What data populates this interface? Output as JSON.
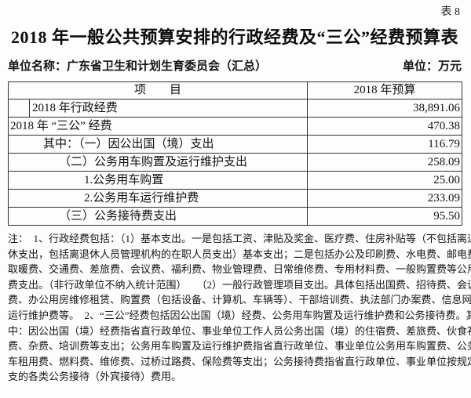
{
  "doc": {
    "table_tag": "表 8",
    "title": "2018 年一般公共预算安排的行政经费及“三公”经费预算表",
    "unit_name": "单位名称：广东省卫生和计划生育委员会（汇总）",
    "unit_measure": "单位：万元"
  },
  "table": {
    "header": {
      "item": "项　　目",
      "budget": "2018 年预算"
    },
    "rows": [
      {
        "label": "2018 年行政经费",
        "value": "38,891.06"
      },
      {
        "label": "2018 年 “三公” 经费",
        "value": "470.38"
      },
      {
        "label": "其中：（一）因公出国（境）支出",
        "value": "116.79"
      },
      {
        "label": "（二）公务用车购置及运行维护支出",
        "value": "258.09"
      },
      {
        "label": "1.公务用车购置",
        "value": "25.00"
      },
      {
        "label": "2.公务用车运行维护费",
        "value": "233.09"
      },
      {
        "label": "（三）公务接待费支出",
        "value": "95.50"
      }
    ]
  },
  "notes": {
    "lines": [
      "注：　1、行政经费包括：（1）基本支出。一是包括工资、津贴及奖金、医疗费、住房补贴等（不包括离退",
      "休支出，包括离退休人员管理机构的在职人员支出）基本支出；二是包括办公及印刷费、水电费、邮电费、",
      "取暖费、交通费、差旅费、会议费、福利费、物业管理费、日常维修费、专用材料费、一般购置费等公用经",
      "费支出。（非行政单位不纳入统计范围）　　（2）一般行政管理项目支出。具体包括出国费、招待费、会议",
      "费、办公用房维修租赁、购置费（包括设备、计算机、车辆等）、干部培训费、执法部门办案费、信息网络",
      "运行维护费等。　2、“三公”经费包括因公出国（境）经费、公务用车购置及运行维护费和公务接待费。其",
      "中：因公出国（境）经费指省直行政单位、事业单位工作人员公务出国（境）的住宿费、差旅费、伙食补助",
      "费、杂费、培训费等支出；公务用车购置及运行维护费指省直行政单位、事业单位公务用车购置费、公务用",
      "车租用费、燃料费、维修费、过桥过路费、保险费等支出；公务接待费指省直行政单位、事业单位按规定开",
      "支的各类公务接待（外宾接待）费用。"
    ]
  }
}
